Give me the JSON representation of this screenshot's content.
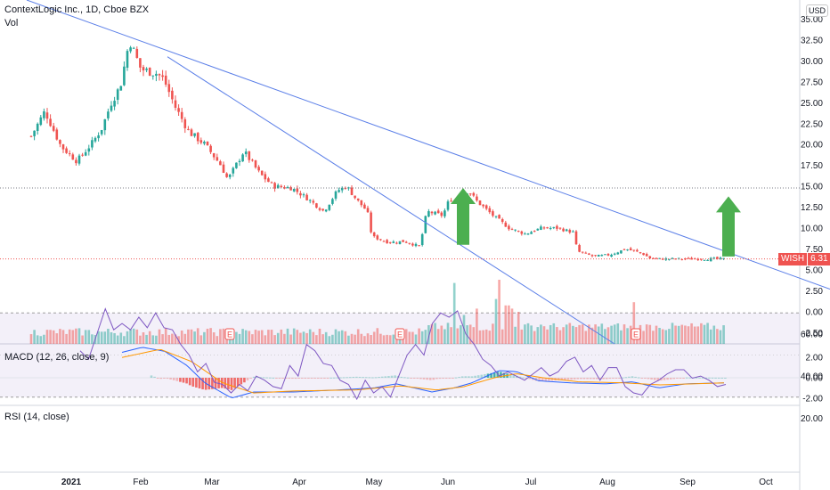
{
  "header": {
    "title": "ContextLogic Inc., 1D, Cboe BZX",
    "volume_label": "Vol",
    "macd_label": "MACD (12, 26, close, 9)",
    "rsi_label": "RSI (14, close)",
    "currency": "USD"
  },
  "price_tag": {
    "symbol": "WISH",
    "value": "6.31"
  },
  "chart_data": [
    {
      "type": "candlestick",
      "title": "ContextLogic Inc., 1D, Cboe BZX",
      "x_tick_labels": [
        "2021",
        "Feb",
        "Mar",
        "Apr",
        "May",
        "Jun",
        "Jul",
        "Aug",
        "Sep",
        "Oct"
      ],
      "y_tick_labels": [
        "35.00",
        "32.50",
        "30.00",
        "27.50",
        "25.00",
        "22.50",
        "20.00",
        "17.50",
        "15.00",
        "12.50",
        "10.00",
        "7.50",
        "5.00",
        "2.50",
        "0.00",
        "-2.50"
      ],
      "ylim": [
        -3.5,
        36
      ],
      "last_price": 6.31,
      "close_path": [
        {
          "date": "2020-12-16",
          "close": 21.0
        },
        {
          "date": "2020-12-22",
          "close": 24.0
        },
        {
          "date": "2020-12-29",
          "close": 19.8
        },
        {
          "date": "2021-01-05",
          "close": 18.0
        },
        {
          "date": "2021-01-12",
          "close": 20.3
        },
        {
          "date": "2021-01-16",
          "close": 22.0
        },
        {
          "date": "2021-01-20",
          "close": 25.0
        },
        {
          "date": "2021-01-24",
          "close": 27.0
        },
        {
          "date": "2021-01-28",
          "close": 32.5
        },
        {
          "date": "2021-02-02",
          "close": 29.0
        },
        {
          "date": "2021-02-09",
          "close": 28.5
        },
        {
          "date": "2021-02-12",
          "close": 27.8
        },
        {
          "date": "2021-02-17",
          "close": 24.5
        },
        {
          "date": "2021-02-23",
          "close": 21.5
        },
        {
          "date": "2021-03-02",
          "close": 20.0
        },
        {
          "date": "2021-03-09",
          "close": 17.5
        },
        {
          "date": "2021-03-12",
          "close": 15.8
        },
        {
          "date": "2021-03-19",
          "close": 19.2
        },
        {
          "date": "2021-03-26",
          "close": 16.5
        },
        {
          "date": "2021-04-01",
          "close": 15.0
        },
        {
          "date": "2021-04-09",
          "close": 14.8
        },
        {
          "date": "2021-04-16",
          "close": 13.5
        },
        {
          "date": "2021-04-23",
          "close": 12.0
        },
        {
          "date": "2021-04-29",
          "close": 14.5
        },
        {
          "date": "2021-05-03",
          "close": 15.0
        },
        {
          "date": "2021-05-07",
          "close": 13.5
        },
        {
          "date": "2021-05-12",
          "close": 12.0
        },
        {
          "date": "2021-05-14",
          "close": 9.0
        },
        {
          "date": "2021-05-21",
          "close": 8.3
        },
        {
          "date": "2021-05-28",
          "close": 8.4
        },
        {
          "date": "2021-06-04",
          "close": 7.8
        },
        {
          "date": "2021-06-07",
          "close": 12.0
        },
        {
          "date": "2021-06-14",
          "close": 11.5
        },
        {
          "date": "2021-06-17",
          "close": 13.5
        },
        {
          "date": "2021-06-21",
          "close": 13.0
        },
        {
          "date": "2021-06-25",
          "close": 14.5
        },
        {
          "date": "2021-06-29",
          "close": 13.2
        },
        {
          "date": "2021-07-06",
          "close": 11.5
        },
        {
          "date": "2021-07-13",
          "close": 10.0
        },
        {
          "date": "2021-07-20",
          "close": 9.3
        },
        {
          "date": "2021-07-27",
          "close": 10.0
        },
        {
          "date": "2021-08-03",
          "close": 10.0
        },
        {
          "date": "2021-08-10",
          "close": 9.5
        },
        {
          "date": "2021-08-12",
          "close": 7.2
        },
        {
          "date": "2021-08-19",
          "close": 6.6
        },
        {
          "date": "2021-08-26",
          "close": 6.8
        },
        {
          "date": "2021-09-02",
          "close": 7.5
        },
        {
          "date": "2021-09-09",
          "close": 7.0
        },
        {
          "date": "2021-09-13",
          "close": 6.31
        }
      ],
      "annotations": {
        "earnings_markers": [
          "E",
          "E",
          "E"
        ],
        "up_arrows": 2,
        "trendlines": 2,
        "horizontal_level": 14.8
      }
    },
    {
      "type": "bar",
      "name": "Volume",
      "note": "relative volume, tallest spikes around mid/late June and mid-August"
    },
    {
      "type": "line",
      "title": "MACD (12, 26, close, 9)",
      "y_tick_labels": [
        "2.00",
        "0.00",
        "-2.00"
      ],
      "ylim": [
        -2.5,
        2.8
      ]
    },
    {
      "type": "line",
      "title": "RSI (14, close)",
      "y_tick_labels": [
        "60.00",
        "40.00",
        "20.00"
      ],
      "ylim": [
        17,
        78
      ],
      "band": [
        30,
        70
      ],
      "rsi_path": [
        52,
        48,
        60,
        72,
        62,
        65,
        62,
        68,
        63,
        70,
        63,
        62,
        55,
        50,
        42,
        46,
        37,
        36,
        32,
        36,
        33,
        40,
        38,
        35,
        34,
        45,
        40,
        55,
        52,
        46,
        45,
        38,
        36,
        29,
        38,
        32,
        35,
        30,
        40,
        50,
        55,
        50,
        65,
        70,
        68,
        71,
        60,
        55,
        48,
        45,
        40,
        42,
        40,
        38,
        41,
        44,
        40,
        42,
        47,
        49,
        42,
        45,
        38,
        44,
        44,
        35,
        32,
        31,
        36,
        38,
        41,
        43,
        43,
        39,
        40,
        38,
        35,
        36
      ]
    }
  ],
  "colors": {
    "up": "#26a69a",
    "down": "#ef5350",
    "trendline": "#5b7fe8",
    "macd": "#2962ff",
    "signal": "#ff9800",
    "rsi": "#7e57c2",
    "arrow": "#4caf50"
  }
}
